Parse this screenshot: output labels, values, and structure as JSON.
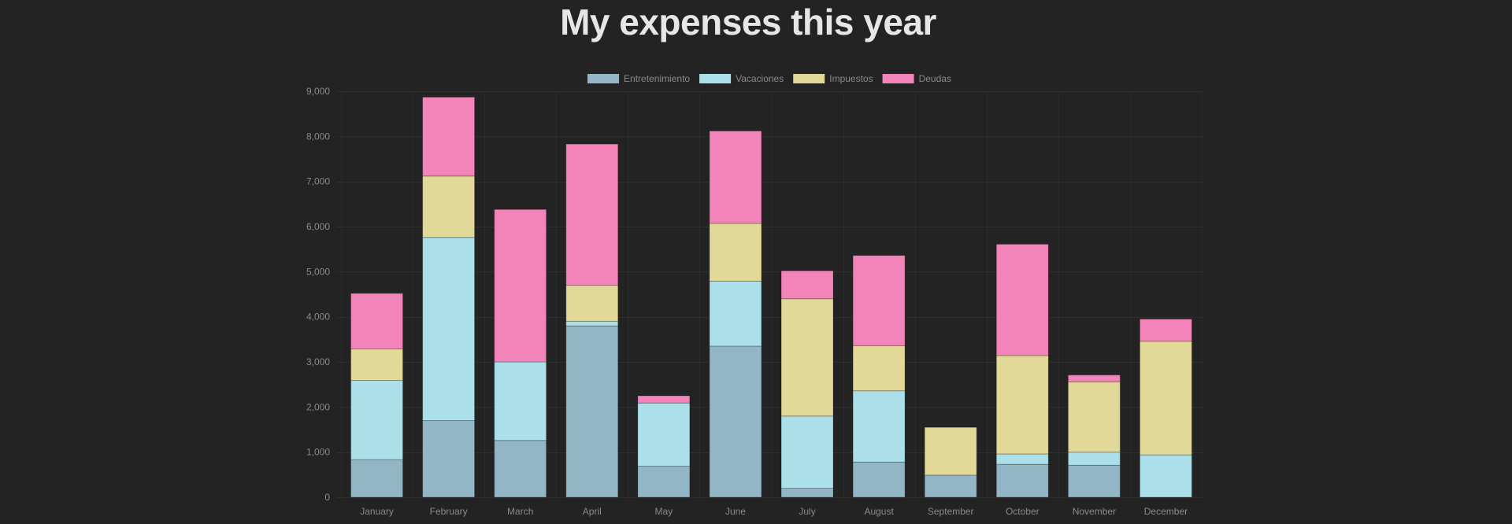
{
  "chart_data": {
    "type": "bar",
    "stacked": true,
    "title": "My expenses this year",
    "xlabel": "",
    "ylabel": "",
    "ylim": [
      0,
      9000
    ],
    "yticks": [
      0,
      1000,
      2000,
      3000,
      4000,
      5000,
      6000,
      7000,
      8000,
      9000
    ],
    "ytick_labels": [
      "0",
      "1,000",
      "2,000",
      "3,000",
      "4,000",
      "5,000",
      "6,000",
      "7,000",
      "8,000",
      "9,000"
    ],
    "grid": true,
    "legend_position": "top-center",
    "categories": [
      "January",
      "February",
      "March",
      "April",
      "May",
      "June",
      "July",
      "August",
      "September",
      "October",
      "November",
      "December"
    ],
    "series": [
      {
        "name": "Entretenimiento",
        "color": "#93b6c6",
        "values": [
          830,
          1700,
          1260,
          3800,
          690,
          3350,
          200,
          780,
          490,
          730,
          710,
          0
        ]
      },
      {
        "name": "Vacaciones",
        "color": "#abdfe9",
        "values": [
          1760,
          4060,
          1740,
          100,
          1400,
          1440,
          1600,
          1580,
          0,
          230,
          290,
          940
        ]
      },
      {
        "name": "Impuestos",
        "color": "#e2d898",
        "values": [
          700,
          1360,
          0,
          800,
          0,
          1280,
          2600,
          1000,
          1060,
          2180,
          1560,
          2520
        ]
      },
      {
        "name": "Deudas",
        "color": "#f384b9",
        "values": [
          1230,
          1750,
          3380,
          3130,
          160,
          2050,
          620,
          2000,
          0,
          2470,
          150,
          490
        ]
      }
    ]
  }
}
